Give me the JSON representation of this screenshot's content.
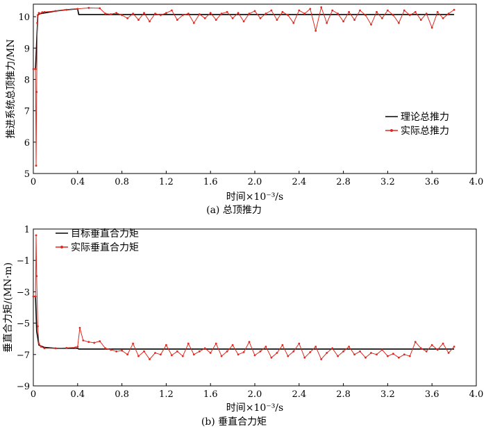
{
  "chart_data": [
    {
      "type": "line",
      "caption": "(a)  总顶推力",
      "xlabel": "时间×10⁻³/s",
      "ylabel": "推进系统总顶推力/MN",
      "xlim": [
        0,
        4.0
      ],
      "ylim": [
        5,
        10.4
      ],
      "x_ticks": [
        "0",
        "0.4",
        "0.8",
        "1.2",
        "1.6",
        "2.0",
        "2.4",
        "2.8",
        "3.2",
        "3.6",
        "4.0"
      ],
      "y_ticks": [
        "5",
        "6",
        "7",
        "8",
        "9",
        "10"
      ],
      "grid": false,
      "legend_position": "right",
      "series": [
        {
          "name": "理论总推力",
          "color": "#000000",
          "x": [
            0.0,
            0.02,
            0.04,
            0.06,
            0.1,
            0.2,
            0.3,
            0.4,
            0.41,
            3.8
          ],
          "y": [
            8.33,
            8.33,
            10.05,
            10.1,
            10.12,
            10.18,
            10.22,
            10.25,
            10.07,
            10.07
          ]
        },
        {
          "name": "实际总推力",
          "color": "#e0281e",
          "x": [
            0.0,
            0.02,
            0.025,
            0.03,
            0.035,
            0.04,
            0.05,
            0.06,
            0.08,
            0.1,
            0.2,
            0.3,
            0.4,
            0.5,
            0.6,
            0.65,
            0.7,
            0.75,
            0.8,
            0.85,
            0.9,
            0.95,
            1.0,
            1.05,
            1.1,
            1.15,
            1.2,
            1.25,
            1.3,
            1.35,
            1.4,
            1.45,
            1.5,
            1.55,
            1.6,
            1.65,
            1.7,
            1.75,
            1.8,
            1.85,
            1.9,
            1.95,
            2.0,
            2.05,
            2.1,
            2.15,
            2.2,
            2.25,
            2.3,
            2.35,
            2.4,
            2.45,
            2.5,
            2.55,
            2.6,
            2.65,
            2.7,
            2.75,
            2.8,
            2.85,
            2.9,
            2.95,
            3.0,
            3.05,
            3.1,
            3.15,
            3.2,
            3.25,
            3.3,
            3.35,
            3.4,
            3.45,
            3.5,
            3.55,
            3.6,
            3.65,
            3.7,
            3.75,
            3.8
          ],
          "y": [
            8.33,
            8.33,
            5.25,
            7.6,
            9.8,
            10.05,
            10.12,
            10.1,
            10.14,
            10.15,
            10.18,
            10.22,
            10.25,
            10.28,
            10.27,
            10.1,
            10.08,
            10.12,
            10.05,
            9.95,
            10.1,
            9.9,
            10.12,
            9.85,
            10.1,
            10.05,
            10.12,
            10.2,
            9.9,
            10.05,
            10.1,
            9.8,
            10.08,
            9.95,
            10.12,
            9.9,
            10.1,
            10.15,
            9.95,
            10.12,
            9.85,
            10.1,
            10.18,
            9.95,
            10.1,
            10.2,
            9.9,
            10.15,
            10.05,
            9.8,
            10.2,
            10.1,
            10.25,
            9.55,
            10.3,
            9.8,
            10.2,
            10.1,
            9.85,
            10.15,
            9.9,
            10.2,
            10.05,
            9.75,
            10.15,
            9.95,
            10.2,
            10.05,
            9.8,
            10.2,
            10.05,
            10.15,
            9.9,
            10.1,
            9.65,
            10.15,
            9.95,
            10.1,
            10.22
          ]
        }
      ]
    },
    {
      "type": "line",
      "caption": "(b)  垂直合力矩",
      "xlabel": "时间×10⁻³/s",
      "ylabel": "垂直合力矩/(MN·m)",
      "xlim": [
        0,
        4.0
      ],
      "ylim": [
        -9,
        1
      ],
      "x_ticks": [
        "0",
        "0.4",
        "0.8",
        "1.2",
        "1.6",
        "2.0",
        "2.4",
        "2.8",
        "3.2",
        "3.6",
        "4.0"
      ],
      "y_ticks": [
        "1",
        "−1",
        "−3",
        "−5",
        "−7",
        "−9"
      ],
      "grid": false,
      "legend_position": "top-left",
      "series": [
        {
          "name": "目标垂直合力矩",
          "color": "#000000",
          "x": [
            0.0,
            0.02,
            0.03,
            0.05,
            0.1,
            0.2,
            0.3,
            0.4,
            0.41,
            3.8
          ],
          "y": [
            -3.3,
            -3.3,
            -5.5,
            -6.4,
            -6.55,
            -6.6,
            -6.6,
            -6.6,
            -6.65,
            -6.65
          ]
        },
        {
          "name": "实际垂直合力矩",
          "color": "#e0281e",
          "x": [
            0.0,
            0.02,
            0.025,
            0.03,
            0.04,
            0.05,
            0.07,
            0.1,
            0.2,
            0.3,
            0.38,
            0.4,
            0.42,
            0.45,
            0.5,
            0.55,
            0.6,
            0.65,
            0.7,
            0.75,
            0.8,
            0.85,
            0.9,
            0.95,
            1.0,
            1.05,
            1.1,
            1.15,
            1.2,
            1.25,
            1.3,
            1.35,
            1.4,
            1.45,
            1.5,
            1.55,
            1.6,
            1.65,
            1.7,
            1.75,
            1.8,
            1.85,
            1.9,
            1.95,
            2.0,
            2.05,
            2.1,
            2.15,
            2.2,
            2.25,
            2.3,
            2.35,
            2.4,
            2.45,
            2.5,
            2.55,
            2.6,
            2.65,
            2.7,
            2.75,
            2.8,
            2.85,
            2.9,
            2.95,
            3.0,
            3.05,
            3.1,
            3.15,
            3.2,
            3.25,
            3.3,
            3.35,
            3.4,
            3.45,
            3.5,
            3.55,
            3.6,
            3.65,
            3.7,
            3.75,
            3.8
          ],
          "y": [
            -3.3,
            -3.3,
            0.6,
            -2.0,
            -5.2,
            -6.3,
            -6.5,
            -6.6,
            -6.6,
            -6.58,
            -6.55,
            -6.5,
            -5.3,
            -6.1,
            -6.2,
            -6.25,
            -6.15,
            -6.6,
            -6.7,
            -6.8,
            -6.75,
            -7.0,
            -6.3,
            -7.1,
            -6.8,
            -7.3,
            -6.9,
            -7.0,
            -6.4,
            -7.05,
            -6.8,
            -7.1,
            -6.3,
            -7.0,
            -6.8,
            -6.6,
            -6.9,
            -6.3,
            -7.1,
            -6.8,
            -6.4,
            -7.0,
            -6.85,
            -6.2,
            -7.05,
            -6.8,
            -6.5,
            -7.2,
            -6.9,
            -6.4,
            -7.1,
            -6.8,
            -6.3,
            -7.2,
            -6.85,
            -6.5,
            -7.3,
            -6.9,
            -6.6,
            -7.1,
            -6.8,
            -6.5,
            -7.0,
            -6.8,
            -7.2,
            -6.9,
            -7.0,
            -6.7,
            -7.1,
            -6.95,
            -7.2,
            -7.0,
            -7.1,
            -6.2,
            -6.6,
            -6.8,
            -6.4,
            -6.7,
            -6.3,
            -6.9,
            -6.5
          ]
        }
      ]
    }
  ]
}
